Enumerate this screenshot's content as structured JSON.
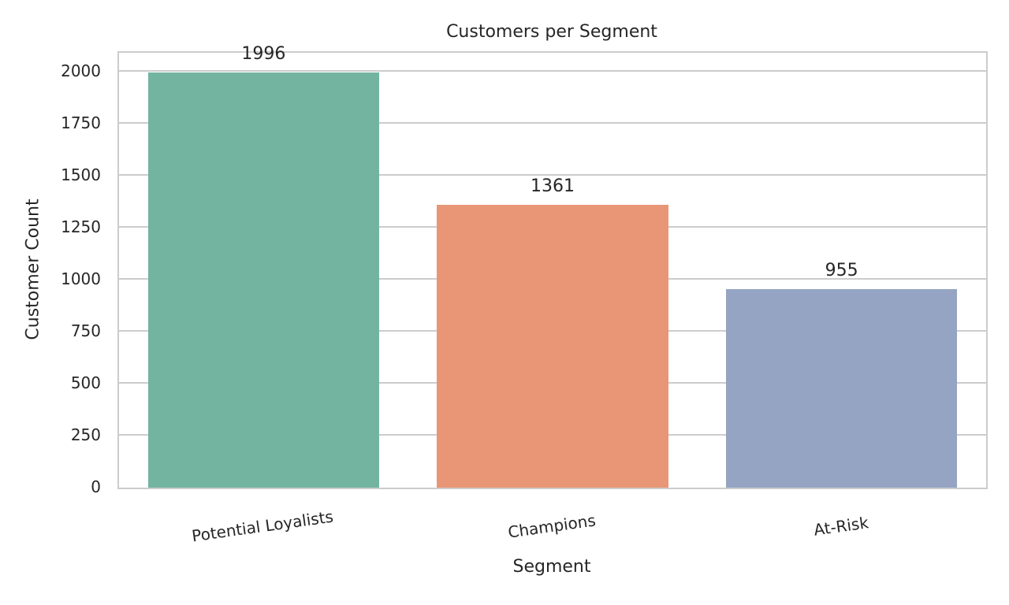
{
  "chart_data": {
    "type": "bar",
    "title": "Customers per Segment",
    "xlabel": "Segment",
    "ylabel": "Customer Count",
    "categories": [
      "Potential Loyalists",
      "Champions",
      "At-Risk"
    ],
    "values": [
      1996,
      1361,
      955
    ],
    "value_labels": [
      "1996",
      "1361",
      "955"
    ],
    "colors": [
      "#73b4a0",
      "#e89675",
      "#95a4c3"
    ],
    "ylim": [
      0,
      2090
    ],
    "yticks": [
      0,
      250,
      500,
      750,
      1000,
      1250,
      1500,
      1750,
      2000
    ],
    "ytick_labels": [
      "0",
      "250",
      "500",
      "750",
      "1000",
      "1250",
      "1500",
      "1750",
      "2000"
    ],
    "grid": true,
    "legend": null,
    "xtick_rotation": -10
  }
}
